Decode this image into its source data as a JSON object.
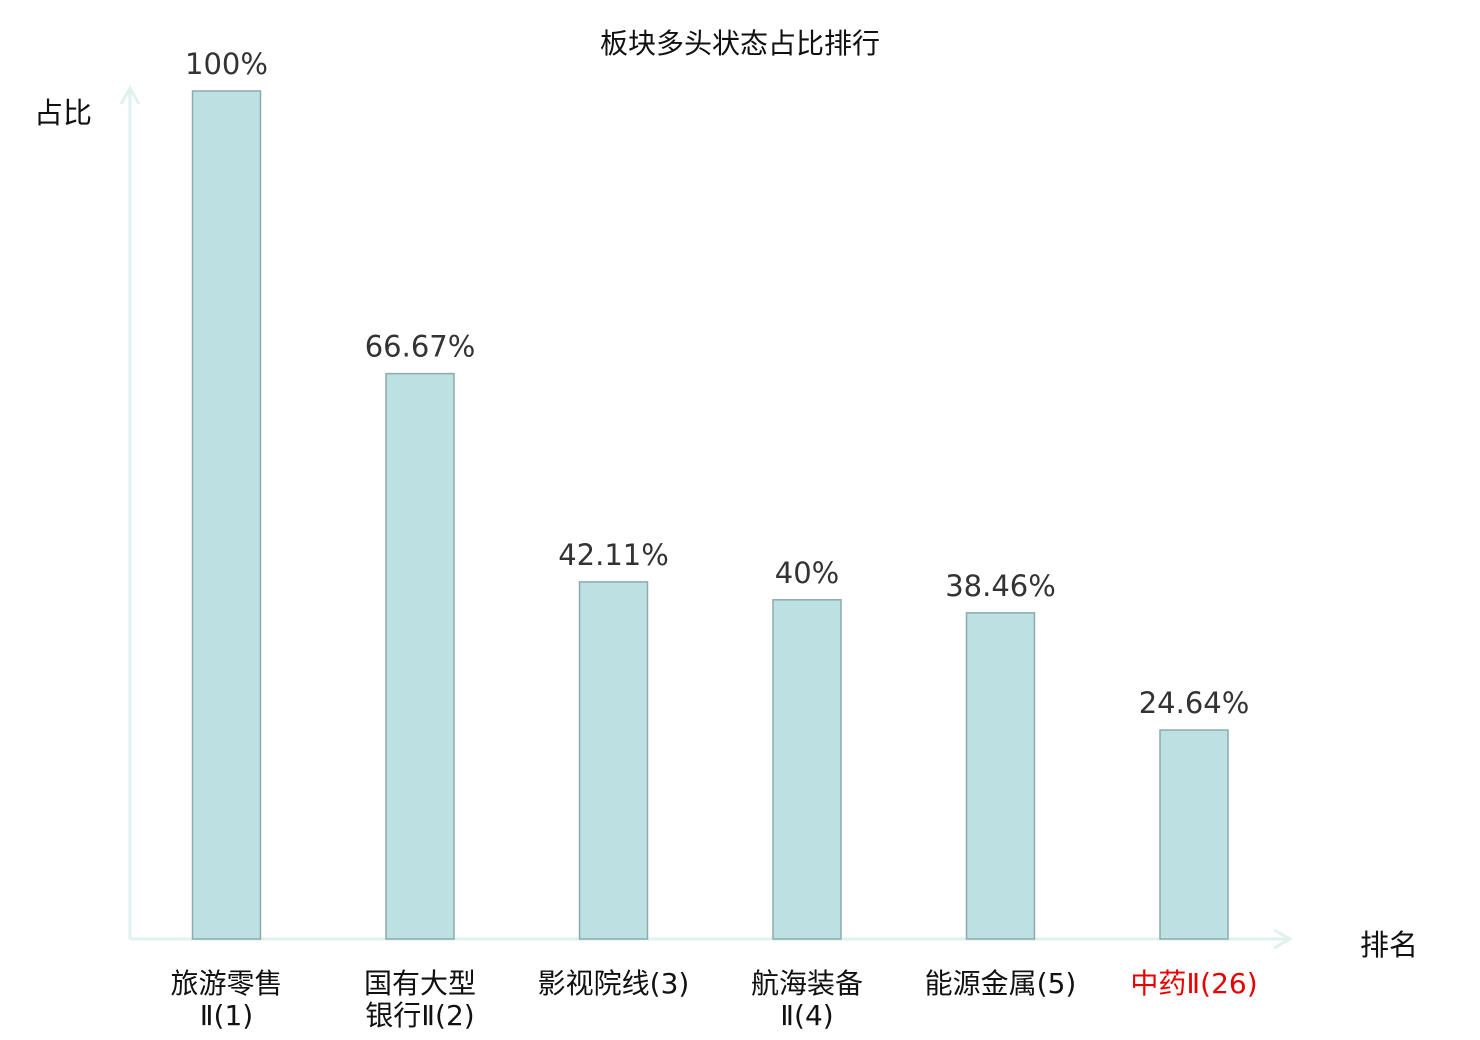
{
  "chart_data": {
    "type": "bar",
    "title": "板块多头状态占比排行",
    "ylabel": "占比",
    "xlabel": "排名",
    "ylim": [
      0,
      100
    ],
    "grid": false,
    "legend": "none",
    "categories": [
      {
        "lines": [
          "旅游零售",
          "Ⅱ(1)"
        ],
        "highlight": false
      },
      {
        "lines": [
          "国有大型",
          "银行Ⅱ(2)"
        ],
        "highlight": false
      },
      {
        "lines": [
          "影视院线(3)"
        ],
        "highlight": false
      },
      {
        "lines": [
          "航海装备",
          "Ⅱ(4)"
        ],
        "highlight": false
      },
      {
        "lines": [
          "能源金属(5)"
        ],
        "highlight": false
      },
      {
        "lines": [
          "中药Ⅱ(26)"
        ],
        "highlight": true
      }
    ],
    "values": [
      100,
      66.67,
      42.11,
      40,
      38.46,
      24.64
    ],
    "value_labels": [
      "100%",
      "66.67%",
      "42.11%",
      "40%",
      "38.46%",
      "24.64%"
    ],
    "colors": {
      "bar_fill": "#bde0e3",
      "bar_stroke": "#8aaaae",
      "axis": "#e0f2ef",
      "value_label": "#333333",
      "category_label": "#111111",
      "highlight_label": "#e60000"
    }
  }
}
